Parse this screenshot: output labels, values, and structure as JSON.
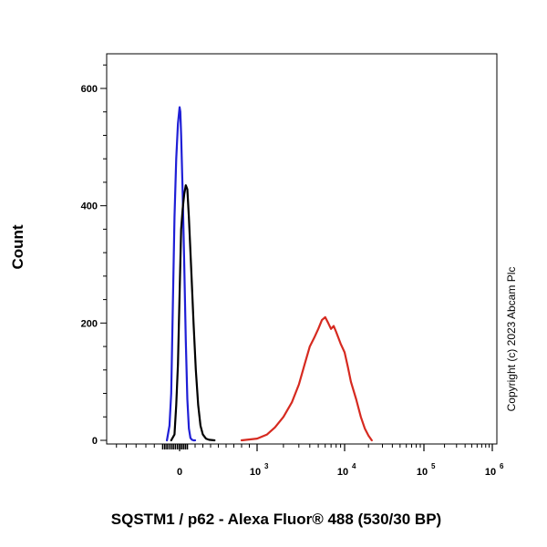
{
  "chart_data": {
    "type": "line",
    "title": "",
    "xlabel": "SQSTM1 / p62 - Alexa Fluor® 488 (530/30 BP)",
    "ylabel": "Count",
    "x_scale": "biexponential",
    "x_ticks": [
      {
        "value": 0,
        "base": "0",
        "exp": ""
      },
      {
        "value": 1000,
        "base": "10",
        "exp": "3"
      },
      {
        "value": 10000,
        "base": "10",
        "exp": "4"
      },
      {
        "value": 100000,
        "base": "10",
        "exp": "5"
      },
      {
        "value": 1000000,
        "base": "10",
        "exp": "6"
      }
    ],
    "y_ticks": [
      "0",
      "200",
      "400",
      "600"
    ],
    "ylim": [
      0,
      660
    ],
    "grid": false,
    "annotation": "Copyright (c) 2023 Abcam Plc",
    "series": [
      {
        "color": "#1f1fd6",
        "x": [
          -150,
          -120,
          -100,
          -80,
          -60,
          -40,
          -20,
          0,
          10,
          20,
          40,
          60,
          80,
          100,
          120,
          140,
          160,
          180,
          200
        ],
        "y": [
          0,
          25,
          80,
          230,
          380,
          480,
          540,
          568,
          560,
          520,
          420,
          300,
          170,
          70,
          20,
          4,
          1,
          0,
          0
        ]
      },
      {
        "color": "#000000",
        "x": [
          -100,
          -60,
          -40,
          -20,
          0,
          20,
          40,
          60,
          80,
          100,
          120,
          150,
          180,
          210,
          240,
          270,
          300,
          340,
          380,
          450
        ],
        "y": [
          0,
          10,
          60,
          130,
          250,
          360,
          395,
          420,
          435,
          428,
          380,
          290,
          200,
          120,
          60,
          25,
          10,
          3,
          1,
          0
        ]
      },
      {
        "color": "#d62a20",
        "x": [
          800,
          1000,
          1300,
          1600,
          2000,
          2500,
          3000,
          3500,
          4000,
          4500,
          5000,
          5500,
          6000,
          6500,
          7000,
          7500,
          8000,
          9000,
          10000,
          11000,
          12000,
          14000,
          16000,
          18000,
          20000,
          22000
        ],
        "y": [
          0,
          3,
          10,
          22,
          40,
          65,
          95,
          130,
          160,
          175,
          190,
          205,
          210,
          200,
          190,
          195,
          185,
          165,
          150,
          125,
          100,
          70,
          40,
          20,
          8,
          0
        ]
      }
    ]
  }
}
